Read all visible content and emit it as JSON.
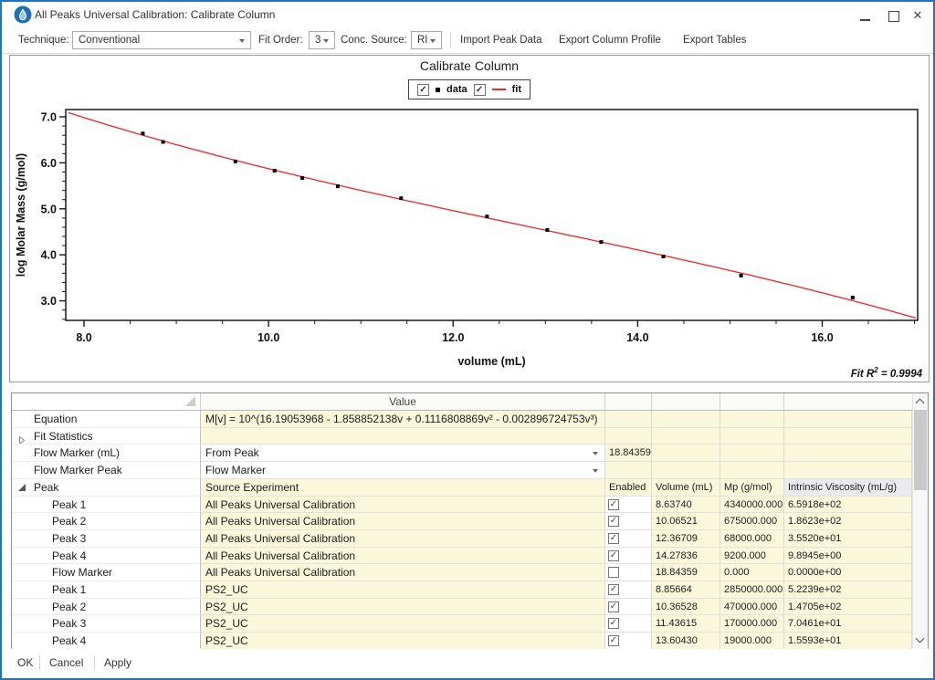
{
  "window": {
    "title": "All Peaks Universal Calibration: Calibrate Column",
    "border_color": "#2373BE"
  },
  "toolbar": {
    "technique_label": "Technique:",
    "technique_value": "Conventional",
    "fit_order_label": "Fit Order:",
    "fit_order_value": "3",
    "conc_source_label": "Conc. Source:",
    "conc_source_value": "RI",
    "buttons": [
      "Import Peak Data",
      "Export Column Profile",
      "Export Tables"
    ]
  },
  "chart_data": {
    "type": "scatter",
    "title": "Calibrate Column",
    "xlabel": "volume (mL)",
    "ylabel": "log Molar Mass (g/mol)",
    "xlim": [
      7.802,
      17.034
    ],
    "ylim": [
      2.575,
      7.159
    ],
    "x_ticks": [
      8,
      10,
      12,
      14,
      16
    ],
    "x_tick_labels": [
      "8.0",
      "10.0",
      "12.0",
      "14.0",
      "16.0"
    ],
    "y_ticks": [
      3,
      4,
      5,
      6,
      7
    ],
    "y_tick_labels": [
      "3.0",
      "4.0",
      "5.0",
      "6.0",
      "7.0"
    ],
    "x_minor_step": 0.5,
    "y_minor_step": 0.2,
    "grid": false,
    "legend_position": "top",
    "legend": [
      {
        "label": "data",
        "marker": "square",
        "checked": true,
        "color": "#000000"
      },
      {
        "label": "fit",
        "marker": "line",
        "checked": true,
        "color": "#F22222"
      }
    ],
    "series": [
      {
        "name": "data",
        "type": "scatter",
        "color": "#000000",
        "points": [
          [
            8.6374,
            6.6375
          ],
          [
            8.85664,
            6.4548
          ],
          [
            9.64,
            6.03
          ],
          [
            10.06521,
            5.8293
          ],
          [
            10.36528,
            5.6721
          ],
          [
            10.75,
            5.49
          ],
          [
            11.43615,
            5.2304
          ],
          [
            12.36709,
            4.8325
          ],
          [
            13.02,
            4.54
          ],
          [
            13.6043,
            4.2788
          ],
          [
            14.27836,
            3.9638
          ],
          [
            15.12,
            3.55
          ],
          [
            16.33,
            3.07
          ]
        ]
      },
      {
        "name": "fit",
        "type": "line",
        "color": "#F22222",
        "poly_coeffs": [
          16.19053968,
          -1.858852138,
          0.1116808869,
          -0.002896724753
        ]
      }
    ],
    "annotation": {
      "prefix": "Fit R",
      "sup": "2",
      "suffix": " = 0.9994"
    }
  },
  "table": {
    "value_header": "Value",
    "columns": [
      "Enabled",
      "Volume (mL)",
      "Mp (g/mol)",
      "Intrinsic Viscosity (mL/g)"
    ],
    "rows": [
      {
        "name": "Equation",
        "indent": 0,
        "arrow": "",
        "kind": "value",
        "value": "M[v] = 10^(16.19053968 - 1.858852138v + 0.1116808869v² - 0.002896724753v³)"
      },
      {
        "name": "Fit Statistics",
        "indent": 0,
        "arrow": "collapsed",
        "kind": "value",
        "value": ""
      },
      {
        "name": "Flow Marker (mL)",
        "indent": 0,
        "arrow": "",
        "kind": "dropdown",
        "value": "From Peak",
        "after": "18.84359"
      },
      {
        "name": "Flow Marker Peak",
        "indent": 0,
        "arrow": "",
        "kind": "dropdown",
        "value": "Flow Marker",
        "after": ""
      },
      {
        "name": "Peak",
        "indent": 0,
        "arrow": "expanded",
        "kind": "subheader",
        "value": "Source Experiment"
      },
      {
        "name": "Peak 1",
        "indent": 1,
        "kind": "peak",
        "source": "All Peaks Universal Calibration",
        "enabled": true,
        "volume": "8.63740",
        "mp": "4340000.000",
        "iv": "6.5918e+02"
      },
      {
        "name": "Peak 2",
        "indent": 1,
        "kind": "peak",
        "source": "All Peaks Universal Calibration",
        "enabled": true,
        "volume": "10.06521",
        "mp": "675000.000",
        "iv": "1.8623e+02"
      },
      {
        "name": "Peak 3",
        "indent": 1,
        "kind": "peak",
        "source": "All Peaks Universal Calibration",
        "enabled": true,
        "volume": "12.36709",
        "mp": "68000.000",
        "iv": "3.5520e+01"
      },
      {
        "name": "Peak 4",
        "indent": 1,
        "kind": "peak",
        "source": "All Peaks Universal Calibration",
        "enabled": true,
        "volume": "14.27836",
        "mp": "9200.000",
        "iv": "9.8945e+00"
      },
      {
        "name": "Flow Marker",
        "indent": 1,
        "kind": "peak",
        "source": "All Peaks Universal Calibration",
        "enabled": false,
        "volume": "18.84359",
        "mp": "0.000",
        "iv": "0.0000e+00"
      },
      {
        "name": "Peak 1",
        "indent": 1,
        "kind": "peak",
        "source": "PS2_UC",
        "enabled": true,
        "volume": "8.85664",
        "mp": "2850000.000",
        "iv": "5.2239e+02"
      },
      {
        "name": "Peak 2",
        "indent": 1,
        "kind": "peak",
        "source": "PS2_UC",
        "enabled": true,
        "volume": "10.36528",
        "mp": "470000.000",
        "iv": "1.4705e+02"
      },
      {
        "name": "Peak 3",
        "indent": 1,
        "kind": "peak",
        "source": "PS2_UC",
        "enabled": true,
        "volume": "11.43615",
        "mp": "170000.000",
        "iv": "7.0461e+01"
      },
      {
        "name": "Peak 4",
        "indent": 1,
        "kind": "peak",
        "source": "PS2_UC",
        "enabled": true,
        "volume": "13.60430",
        "mp": "19000.000",
        "iv": "1.5593e+01"
      }
    ]
  },
  "footer": {
    "buttons": [
      "OK",
      "Cancel",
      "Apply"
    ]
  }
}
